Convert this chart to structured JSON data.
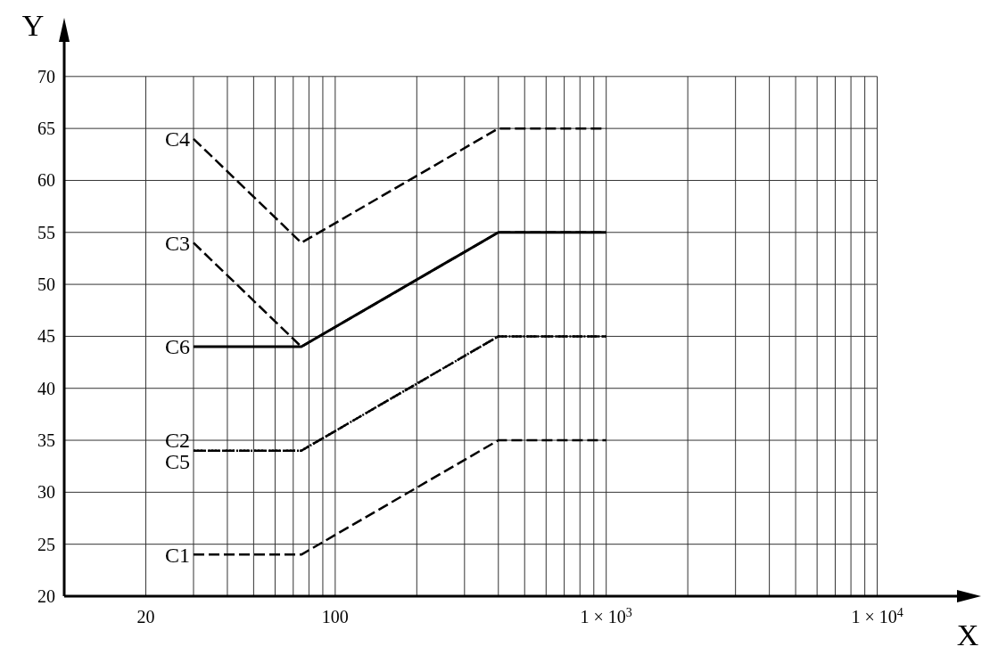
{
  "chart_data": {
    "type": "line",
    "xlabel": "X",
    "ylabel": "Y",
    "log": "x",
    "grid": true,
    "xlim": [
      10,
      20000
    ],
    "ylim": [
      20,
      73.5
    ],
    "xticks": [
      {
        "value": 20,
        "label": "20"
      },
      {
        "value": 30,
        "label": null
      },
      {
        "value": 40,
        "label": null
      },
      {
        "value": 50,
        "label": null
      },
      {
        "value": 60,
        "label": null
      },
      {
        "value": 70,
        "label": null
      },
      {
        "value": 80,
        "label": null
      },
      {
        "value": 90,
        "label": null
      },
      {
        "value": 100,
        "label": "100"
      },
      {
        "value": 200,
        "label": null
      },
      {
        "value": 300,
        "label": null
      },
      {
        "value": 400,
        "label": null
      },
      {
        "value": 500,
        "label": null
      },
      {
        "value": 600,
        "label": null
      },
      {
        "value": 700,
        "label": null
      },
      {
        "value": 800,
        "label": null
      },
      {
        "value": 900,
        "label": null
      },
      {
        "value": 1000,
        "label": "1 × 10$^{3}$"
      },
      {
        "value": 2000,
        "label": null
      },
      {
        "value": 3000,
        "label": null
      },
      {
        "value": 4000,
        "label": null
      },
      {
        "value": 5000,
        "label": null
      },
      {
        "value": 6000,
        "label": null
      },
      {
        "value": 7000,
        "label": null
      },
      {
        "value": 8000,
        "label": null
      },
      {
        "value": 9000,
        "label": null
      },
      {
        "value": 10000,
        "label": "1 × 10$^{4}$"
      }
    ],
    "yticks": [
      20,
      25,
      30,
      35,
      40,
      45,
      50,
      55,
      60,
      65,
      70
    ],
    "x": [
      30,
      75,
      400,
      1000
    ],
    "series": [
      {
        "name": "C1",
        "color": "#000000",
        "line_style": "dashed",
        "values": [
          24,
          24,
          35,
          35
        ]
      },
      {
        "name": "C2",
        "color": "#000000",
        "line_style": "dashed",
        "values": [
          34,
          34,
          45,
          45
        ]
      },
      {
        "name": "C3",
        "color": "#000000",
        "line_style": "dashed",
        "values": [
          54,
          44,
          55,
          55
        ]
      },
      {
        "name": "C4",
        "color": "#000000",
        "line_style": "dashed",
        "values": [
          64,
          54,
          65,
          65
        ]
      },
      {
        "name": "C5",
        "color": "#000000",
        "line_style": "dotted",
        "values": [
          34,
          34,
          45,
          45
        ]
      },
      {
        "name": "C6",
        "color": "#000000",
        "line_style": "solid",
        "values": [
          44,
          44,
          55,
          55
        ]
      }
    ]
  }
}
